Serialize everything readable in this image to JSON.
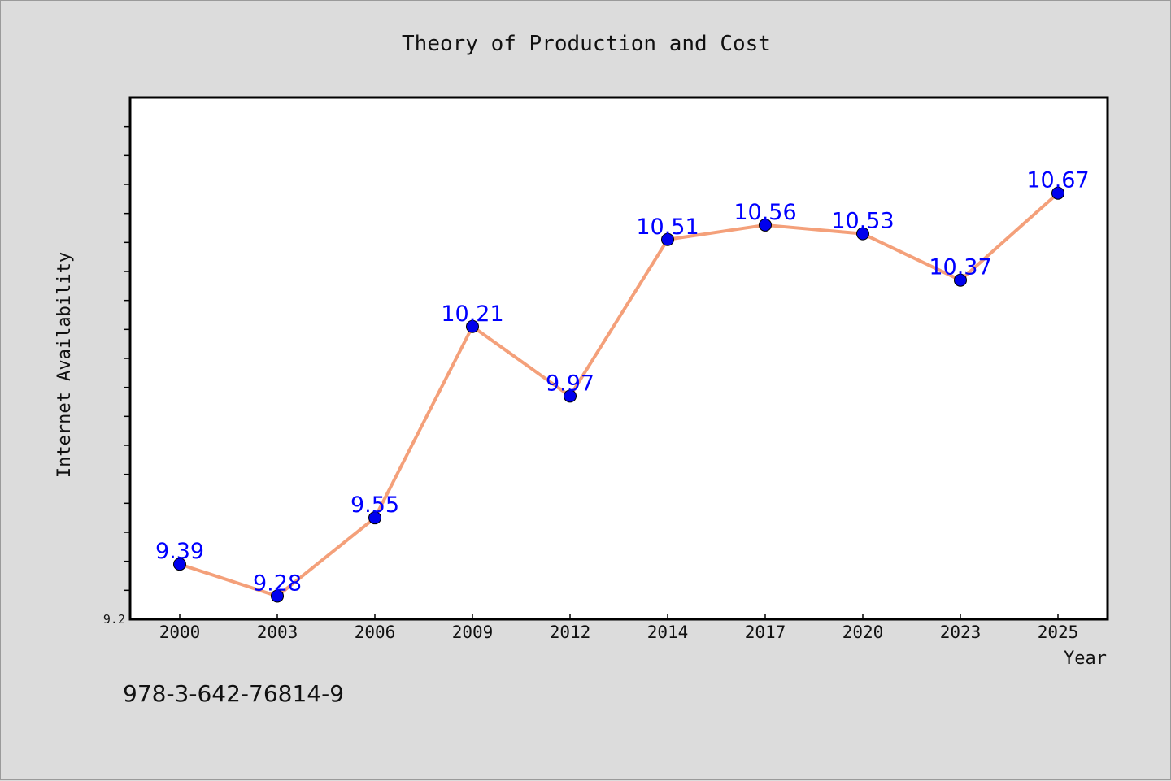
{
  "chart_data": {
    "type": "line",
    "title": "Theory of Production and Cost",
    "xlabel": "Year",
    "ylabel": "Internet Availability",
    "categories": [
      "2000",
      "2003",
      "2006",
      "2009",
      "2012",
      "2014",
      "2017",
      "2020",
      "2023",
      "2025"
    ],
    "series": [
      {
        "values": [
          9.39,
          9.28,
          9.55,
          10.21,
          9.97,
          10.51,
          10.56,
          10.53,
          10.37,
          10.67
        ],
        "labels": [
          "9.39",
          "9.28",
          "9.55",
          "10.21",
          "9.97",
          "10.51",
          "10.56",
          "10.53",
          "10.37",
          "10.67"
        ],
        "line_color": "#f4a07a",
        "marker_color": "#0000ee",
        "label_color": "#0000ff"
      }
    ],
    "y_tick_label": "9.2",
    "ylim": [
      9.2,
      11.0
    ],
    "grid": false,
    "legend": "none"
  },
  "footer": {
    "code": "978-3-642-76814-9"
  },
  "colors": {
    "background": "#dcdcdc",
    "plot_background": "#ffffff",
    "axis": "#000000"
  }
}
